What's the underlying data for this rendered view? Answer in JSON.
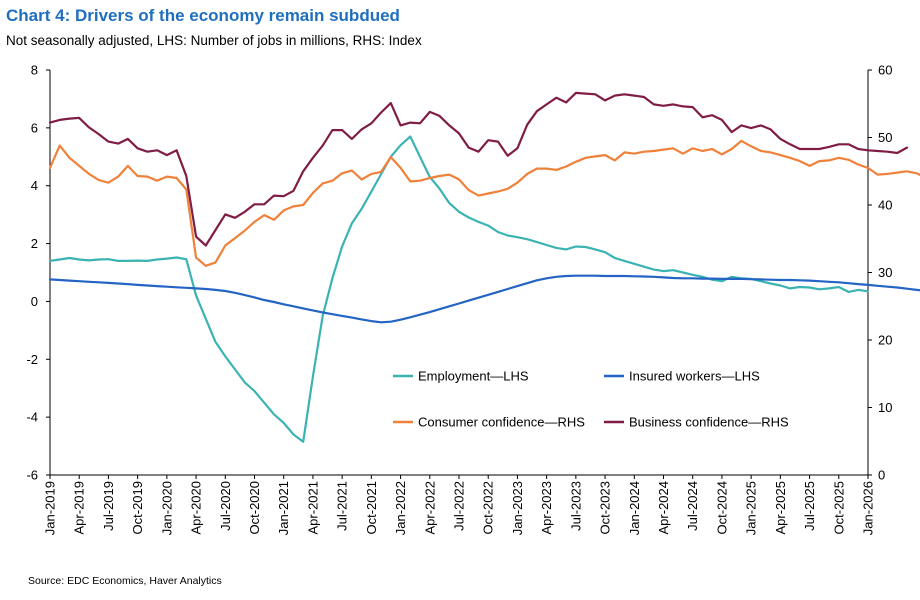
{
  "title": "Chart 4: Drivers of the economy remain subdued",
  "subtitle": "Not seasonally adjusted, LHS: Number of jobs in millions, RHS: Index",
  "source": "Source: EDC Economics, Haver Analytics",
  "chart_data": {
    "type": "line",
    "x_tick_labels": [
      "Jan-2019",
      "Apr-2019",
      "Jul-2019",
      "Oct-2019",
      "Jan-2020",
      "Apr-2020",
      "Jul-2020",
      "Oct-2020",
      "Jan-2021",
      "Apr-2021",
      "Jul-2021",
      "Oct-2021",
      "Jan-2022",
      "Apr-2022",
      "Jul-2022",
      "Oct-2022",
      "Jan-2023",
      "Apr-2023",
      "Jul-2023",
      "Oct-2023",
      "Jan-2024",
      "Apr-2024",
      "Jul-2024",
      "Oct-2024",
      "Jan-2025",
      "Apr-2025",
      "Jul-2025",
      "Oct-2025",
      "Jan-2026"
    ],
    "y_left": {
      "ylim": [
        -6,
        8
      ],
      "ticks": [
        -6,
        -4,
        -2,
        0,
        2,
        4,
        6,
        8
      ]
    },
    "y_right": {
      "ylim": [
        0,
        60
      ],
      "ticks": [
        0,
        10,
        20,
        30,
        40,
        50,
        60
      ]
    },
    "grid": false,
    "legend": {
      "placement": "lower-right inside plot",
      "columns": 2
    },
    "series": [
      {
        "name": "Employment—LHS",
        "axis": "left",
        "color": "#3bb3b3",
        "start": "Jan-2019",
        "values": [
          1.4,
          1.45,
          1.5,
          1.45,
          1.42,
          1.45,
          1.46,
          1.4,
          1.4,
          1.41,
          1.4,
          1.45,
          1.48,
          1.52,
          1.46,
          0.2,
          -0.6,
          -1.4,
          -1.9,
          -2.35,
          -2.8,
          -3.1,
          -3.5,
          -3.9,
          -4.2,
          -4.6,
          -4.85,
          -2.6,
          -0.5,
          0.8,
          1.9,
          2.7,
          3.2,
          3.8,
          4.4,
          5.0,
          5.4,
          5.7,
          5.0,
          4.3,
          3.9,
          3.4,
          3.1,
          2.9,
          2.75,
          2.62,
          2.4,
          2.28,
          2.22,
          2.15,
          2.05,
          1.95,
          1.85,
          1.8,
          1.9,
          1.88,
          1.8,
          1.7,
          1.5,
          1.4,
          1.3,
          1.2,
          1.1,
          1.05,
          1.08,
          1.0,
          0.92,
          0.85,
          0.75,
          0.7,
          0.85,
          0.8,
          0.78,
          0.7,
          0.62,
          0.55,
          0.45,
          0.5,
          0.48,
          0.42,
          0.45,
          0.5,
          0.33,
          0.4,
          0.35
        ]
      },
      {
        "name": "Insured workers—LHS",
        "axis": "left",
        "color": "#2364c4",
        "start": "Jan-2019",
        "values": [
          0.76,
          0.74,
          0.72,
          0.7,
          0.68,
          0.66,
          0.64,
          0.62,
          0.6,
          0.57,
          0.55,
          0.53,
          0.51,
          0.49,
          0.47,
          0.45,
          0.43,
          0.4,
          0.36,
          0.3,
          0.22,
          0.14,
          0.05,
          -0.02,
          -0.1,
          -0.17,
          -0.24,
          -0.31,
          -0.38,
          -0.44,
          -0.5,
          -0.56,
          -0.62,
          -0.68,
          -0.72,
          -0.7,
          -0.63,
          -0.55,
          -0.46,
          -0.37,
          -0.27,
          -0.17,
          -0.07,
          0.03,
          0.13,
          0.23,
          0.33,
          0.43,
          0.53,
          0.63,
          0.73,
          0.8,
          0.85,
          0.88,
          0.89,
          0.89,
          0.89,
          0.88,
          0.88,
          0.88,
          0.87,
          0.86,
          0.85,
          0.83,
          0.81,
          0.8,
          0.8,
          0.79,
          0.79,
          0.78,
          0.78,
          0.78,
          0.77,
          0.76,
          0.75,
          0.74,
          0.74,
          0.73,
          0.72,
          0.7,
          0.68,
          0.66,
          0.63,
          0.6,
          0.57,
          0.54,
          0.51,
          0.48,
          0.44,
          0.4,
          0.36,
          0.32,
          0.28,
          0.24,
          0.2,
          0.17,
          0.15,
          0.14,
          0.13,
          0.13,
          0.13,
          0.13,
          0.13,
          0.14
        ]
      },
      {
        "name": "Consumer confidence—RHS",
        "axis": "right",
        "color": "#f0813a",
        "start": "Jan-2019",
        "values": [
          45.5,
          48.8,
          47.0,
          45.8,
          44.6,
          43.7,
          43.3,
          44.2,
          45.8,
          44.3,
          44.2,
          43.6,
          44.2,
          44.0,
          42.3,
          32.2,
          31.0,
          31.5,
          34.0,
          35.1,
          36.2,
          37.5,
          38.5,
          37.8,
          39.2,
          39.8,
          40.0,
          41.8,
          43.2,
          43.6,
          44.7,
          45.1,
          43.8,
          44.6,
          44.9,
          47.1,
          45.5,
          43.5,
          43.6,
          44.0,
          44.3,
          44.5,
          43.8,
          42.2,
          41.4,
          41.7,
          42.0,
          42.4,
          43.3,
          44.6,
          45.4,
          45.4,
          45.2,
          45.7,
          46.4,
          47.0,
          47.2,
          47.4,
          46.6,
          47.8,
          47.6,
          47.9,
          48.0,
          48.2,
          48.4,
          47.6,
          48.4,
          48.0,
          48.3,
          47.5,
          48.3,
          49.5,
          48.7,
          48.0,
          47.8,
          47.4,
          47.0,
          46.5,
          45.8,
          46.5,
          46.6,
          47.0,
          46.7,
          46.0,
          45.5,
          44.5,
          44.6,
          44.8,
          45.0,
          44.7,
          44.0,
          44.5
        ]
      },
      {
        "name": "Business confidence—RHS",
        "axis": "right",
        "color": "#7f1d45",
        "start": "Jan-2019",
        "values": [
          52.2,
          52.6,
          52.8,
          52.9,
          51.5,
          50.5,
          49.4,
          49.1,
          49.8,
          48.4,
          47.9,
          48.1,
          47.4,
          48.1,
          44.3,
          35.3,
          34.0,
          36.3,
          38.6,
          38.1,
          39.0,
          40.1,
          40.1,
          41.4,
          41.3,
          42.1,
          45.0,
          47.0,
          48.8,
          51.1,
          51.1,
          49.8,
          51.2,
          52.1,
          53.7,
          55.1,
          51.8,
          52.2,
          52.1,
          53.8,
          53.2,
          51.8,
          50.6,
          48.5,
          47.9,
          49.6,
          49.4,
          47.3,
          48.4,
          51.9,
          53.9,
          54.9,
          55.9,
          55.2,
          56.6,
          56.5,
          56.4,
          55.5,
          56.2,
          56.4,
          56.2,
          56.0,
          54.9,
          54.7,
          54.9,
          54.6,
          54.5,
          53.0,
          53.3,
          52.6,
          50.8,
          51.8,
          51.4,
          51.8,
          51.2,
          49.8,
          49.0,
          48.3,
          48.3,
          48.3,
          48.6,
          49.0,
          49.0,
          48.3,
          48.1,
          48.0,
          47.9,
          47.7,
          48.5
        ]
      }
    ]
  }
}
